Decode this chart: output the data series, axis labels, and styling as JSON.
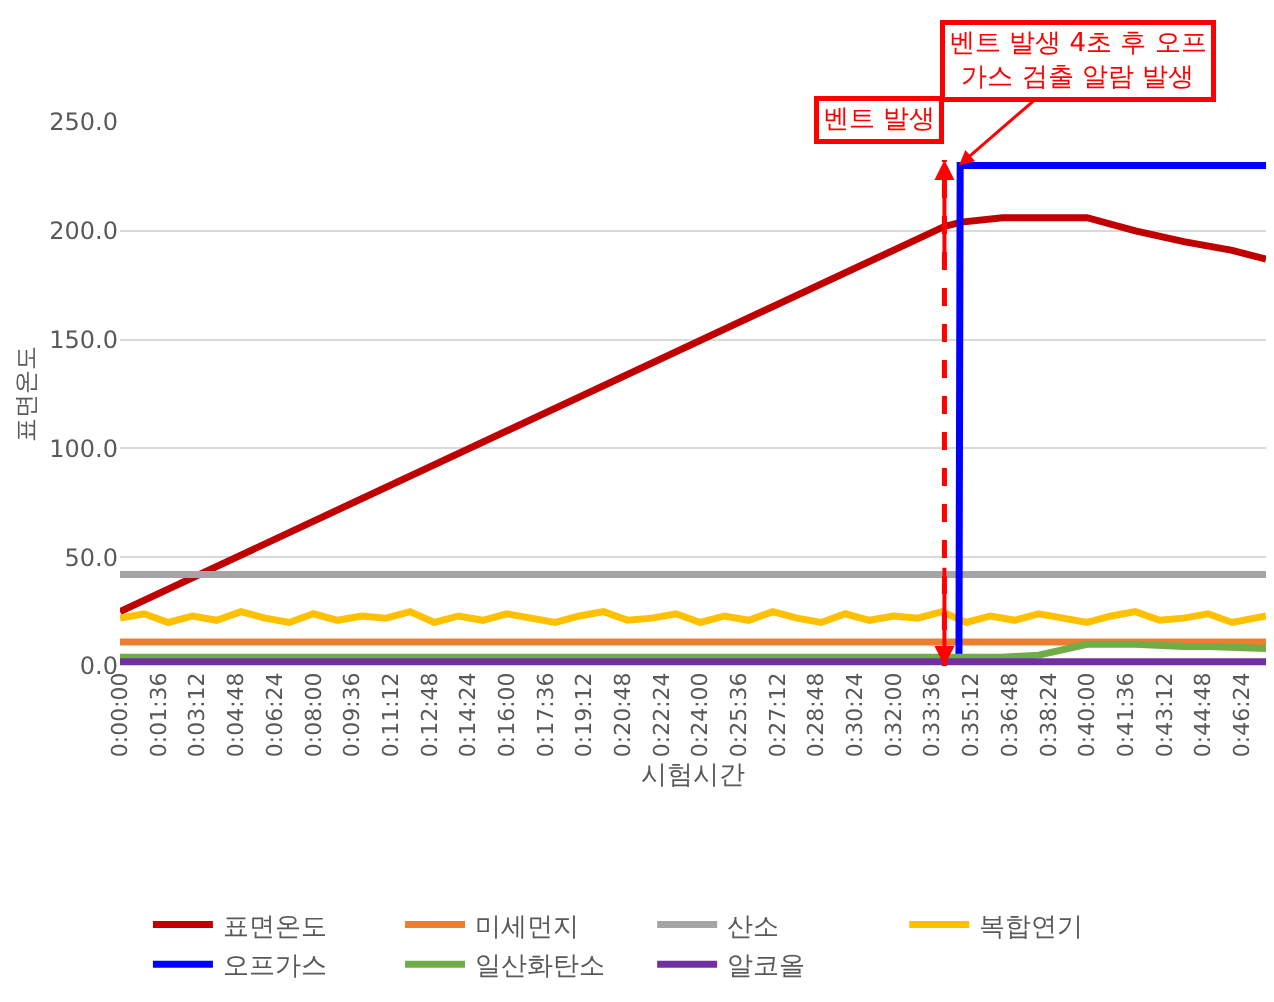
{
  "chart_data": {
    "type": "line",
    "xlabel": "시험시간",
    "ylabel": "표면온도",
    "xlim": [
      0,
      47.4
    ],
    "ylim": [
      0,
      250
    ],
    "xticks": [
      {
        "value": 0,
        "label": "0:00:00"
      },
      {
        "value": 1.6,
        "label": "0:01:36"
      },
      {
        "value": 3.2,
        "label": "0:03:12"
      },
      {
        "value": 4.8,
        "label": "0:04:48"
      },
      {
        "value": 6.4,
        "label": "0:06:24"
      },
      {
        "value": 8,
        "label": "0:08:00"
      },
      {
        "value": 9.6,
        "label": "0:09:36"
      },
      {
        "value": 11.2,
        "label": "0:11:12"
      },
      {
        "value": 12.8,
        "label": "0:12:48"
      },
      {
        "value": 14.4,
        "label": "0:14:24"
      },
      {
        "value": 16,
        "label": "0:16:00"
      },
      {
        "value": 17.6,
        "label": "0:17:36"
      },
      {
        "value": 19.2,
        "label": "0:19:12"
      },
      {
        "value": 20.8,
        "label": "0:20:48"
      },
      {
        "value": 22.4,
        "label": "0:22:24"
      },
      {
        "value": 24,
        "label": "0:24:00"
      },
      {
        "value": 25.6,
        "label": "0:25:36"
      },
      {
        "value": 27.2,
        "label": "0:27:12"
      },
      {
        "value": 28.8,
        "label": "0:28:48"
      },
      {
        "value": 30.4,
        "label": "0:30:24"
      },
      {
        "value": 32,
        "label": "0:32:00"
      },
      {
        "value": 33.6,
        "label": "0:33:36"
      },
      {
        "value": 35.2,
        "label": "0:35:12"
      },
      {
        "value": 36.8,
        "label": "0:36:48"
      },
      {
        "value": 38.4,
        "label": "0:38:24"
      },
      {
        "value": 40,
        "label": "0:40:00"
      },
      {
        "value": 41.6,
        "label": "0:41:36"
      },
      {
        "value": 43.2,
        "label": "0:43:12"
      },
      {
        "value": 44.8,
        "label": "0:44:48"
      },
      {
        "value": 46.4,
        "label": "0:46:24"
      }
    ],
    "yticks": [
      {
        "value": 0,
        "label": "0.0"
      },
      {
        "value": 50,
        "label": "50.0"
      },
      {
        "value": 100,
        "label": "100.0"
      },
      {
        "value": 150,
        "label": "150.0"
      },
      {
        "value": 200,
        "label": "200.0"
      },
      {
        "value": 250,
        "label": "250.0"
      }
    ],
    "grid": "y",
    "legend": "bottom",
    "marker": "none",
    "line_style": "solid",
    "series": [
      {
        "name": "표면온도",
        "color": "#c00000",
        "x": [
          0,
          34.1,
          34.8,
          36.5,
          38,
          40,
          42,
          44,
          46,
          47.4
        ],
        "values": [
          25,
          202,
          204,
          206,
          206,
          206,
          200,
          195,
          191,
          187
        ]
      },
      {
        "name": "미세먼지",
        "color": "#ed7d31",
        "x": [
          0,
          47.4
        ],
        "values": [
          11,
          11
        ]
      },
      {
        "name": "산소",
        "color": "#a5a5a5",
        "x": [
          0,
          47.4
        ],
        "values": [
          42,
          42
        ]
      },
      {
        "name": "복합연기",
        "color": "#ffc000",
        "x": [
          0,
          1,
          2,
          3,
          4,
          5,
          6,
          7,
          8,
          9,
          10,
          11,
          12,
          13,
          14,
          15,
          16,
          17,
          18,
          19,
          20,
          21,
          22,
          23,
          24,
          25,
          26,
          27,
          28,
          29,
          30,
          31,
          32,
          33,
          34,
          35,
          36,
          37,
          38,
          39,
          40,
          41,
          42,
          43,
          44,
          45,
          46,
          47.4
        ],
        "values": [
          22,
          24,
          20,
          23,
          21,
          25,
          22,
          20,
          24,
          21,
          23,
          22,
          25,
          20,
          23,
          21,
          24,
          22,
          20,
          23,
          25,
          21,
          22,
          24,
          20,
          23,
          21,
          25,
          22,
          20,
          24,
          21,
          23,
          22,
          25,
          20,
          23,
          21,
          24,
          22,
          20,
          23,
          25,
          21,
          22,
          24,
          20,
          23
        ]
      },
      {
        "name": "오프가스",
        "color": "#0000ff",
        "x": [
          34.7,
          34.75,
          47.4
        ],
        "values": [
          1,
          230,
          230
        ]
      },
      {
        "name": "일산화탄소",
        "color": "#70ad47",
        "x": [
          0,
          34.7,
          36.5,
          38,
          40,
          42,
          44,
          45,
          47.4
        ],
        "values": [
          4,
          4,
          4,
          5,
          10,
          10,
          9,
          9,
          8
        ]
      },
      {
        "name": "알코올",
        "color": "#7030a0",
        "x": [
          0,
          47.4
        ],
        "values": [
          2,
          2
        ]
      }
    ],
    "ref_lines": [
      {
        "axis": "x",
        "value": 34.1,
        "label": "벤트 발생",
        "color": "#ff0000",
        "line_style": "dashed"
      }
    ],
    "annotations": [
      {
        "text": "벤트 발생 4초 후 오프\n가스 검출 알람 발생",
        "x": 34.7,
        "y": 230
      }
    ]
  }
}
